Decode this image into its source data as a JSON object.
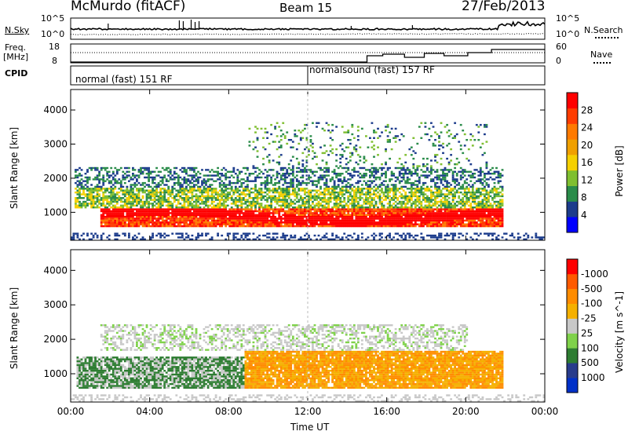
{
  "header": {
    "station": "McMurdo (fitACF)",
    "beam": "Beam 15",
    "date": "27/Feb/2013"
  },
  "top_panels": {
    "nsky_label": "N.Sky",
    "nsky_tick_hi": "10^5",
    "nsky_tick_lo": "10^0",
    "nsearch_label": "N.Search",
    "nsearch_tick_hi": "10^5",
    "nsearch_tick_lo": "10^0",
    "freq_label": "Freq.",
    "freq_unit": "[MHz]",
    "freq_tick_hi": "18",
    "freq_tick_lo": "8",
    "nave_label": "Nave",
    "nave_tick_hi": "60",
    "nave_tick_lo": "0",
    "cpid_label": "CPID",
    "cpid_1": "normal (fast) 151 RF",
    "cpid_2": "normalsound (fast) 157 RF"
  },
  "colors": {
    "power": [
      "#0000ff",
      "#1c3c8c",
      "#2a8c4a",
      "#7fbf30",
      "#f5d000",
      "#f0a000",
      "#ff7a00",
      "#ff3c00",
      "#ff0000"
    ],
    "velocity": [
      "#ff0000",
      "#ff5a00",
      "#ff8c00",
      "#f5b000",
      "#c8c8c8",
      "#7fd24a",
      "#2e7d32",
      "#283c8c",
      "#0030c8"
    ]
  },
  "chart_data": [
    {
      "type": "heatmap",
      "panel": "power",
      "ylabel": "Slant Range [km]",
      "yticks": [
        "1000",
        "2000",
        "3000",
        "4000"
      ],
      "ylim": [
        180,
        4600
      ],
      "xlim": [
        "00:00",
        "24:00"
      ],
      "colorbar_label": "Power [dB]",
      "colorbar_ticks": [
        "4",
        "8",
        "12",
        "16",
        "20",
        "24",
        "28"
      ],
      "clim": [
        0,
        30
      ],
      "description_bands": [
        {
          "t0": 1.5,
          "t1": 21.8,
          "r0": 550,
          "r1": 1100,
          "level": "high"
        },
        {
          "t0": 0.2,
          "t1": 21.8,
          "r0": 1100,
          "r1": 1700,
          "level": "mid"
        },
        {
          "t0": 0.2,
          "t1": 21.8,
          "r0": 1700,
          "r1": 2300,
          "level": "low"
        },
        {
          "t0": 9.0,
          "t1": 21.0,
          "r0": 2300,
          "r1": 3600,
          "level": "sparse"
        }
      ]
    },
    {
      "type": "heatmap",
      "panel": "velocity",
      "ylabel": "Slant Range [km]",
      "yticks": [
        "1000",
        "2000",
        "3000",
        "4000"
      ],
      "ylim": [
        180,
        4600
      ],
      "xlim": [
        "00:00",
        "24:00"
      ],
      "xticks": [
        "00:00",
        "04:00",
        "08:00",
        "12:00",
        "16:00",
        "20:00",
        "00:00"
      ],
      "xlabel": "Time UT",
      "colorbar_label": "Velocity [m s^-1]",
      "colorbar_ticks": [
        "1000",
        "500",
        "100",
        "25",
        "-25",
        "-100",
        "-500",
        "-1000"
      ],
      "description_bands": [
        {
          "t0": 0.3,
          "t1": 8.8,
          "r0": 550,
          "r1": 1450,
          "level": "green-grey"
        },
        {
          "t0": 8.8,
          "t1": 21.8,
          "r0": 550,
          "r1": 1650,
          "level": "orange"
        },
        {
          "t0": 1.5,
          "t1": 20.0,
          "r0": 1650,
          "r1": 2400,
          "level": "grey"
        }
      ]
    }
  ]
}
